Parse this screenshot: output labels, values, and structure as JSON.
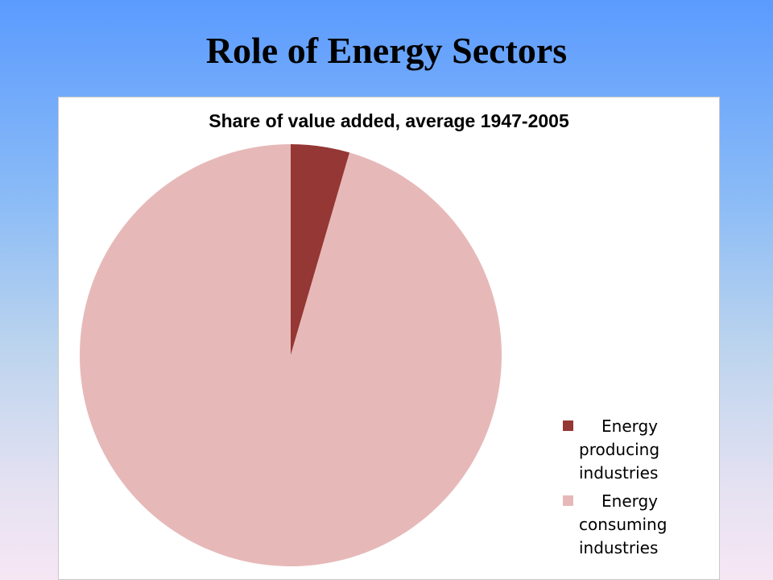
{
  "slide": {
    "title": "Role of Energy Sectors"
  },
  "chart_data": {
    "type": "pie",
    "title": "Share of value added, average 1947-2005",
    "slices": [
      {
        "name": "Energy producing industries",
        "value": 4.5,
        "color": "#953735"
      },
      {
        "name": "Energy consuming industries",
        "value": 95.5,
        "color": "#e6b9b8"
      }
    ],
    "legend": {
      "placement": "bottom-right",
      "entries": [
        {
          "lines": [
            "Energy",
            "producing",
            "industries"
          ],
          "color": "#953735"
        },
        {
          "lines": [
            "Energy",
            "consuming",
            "industries"
          ],
          "color": "#e6b9b8"
        }
      ]
    }
  }
}
